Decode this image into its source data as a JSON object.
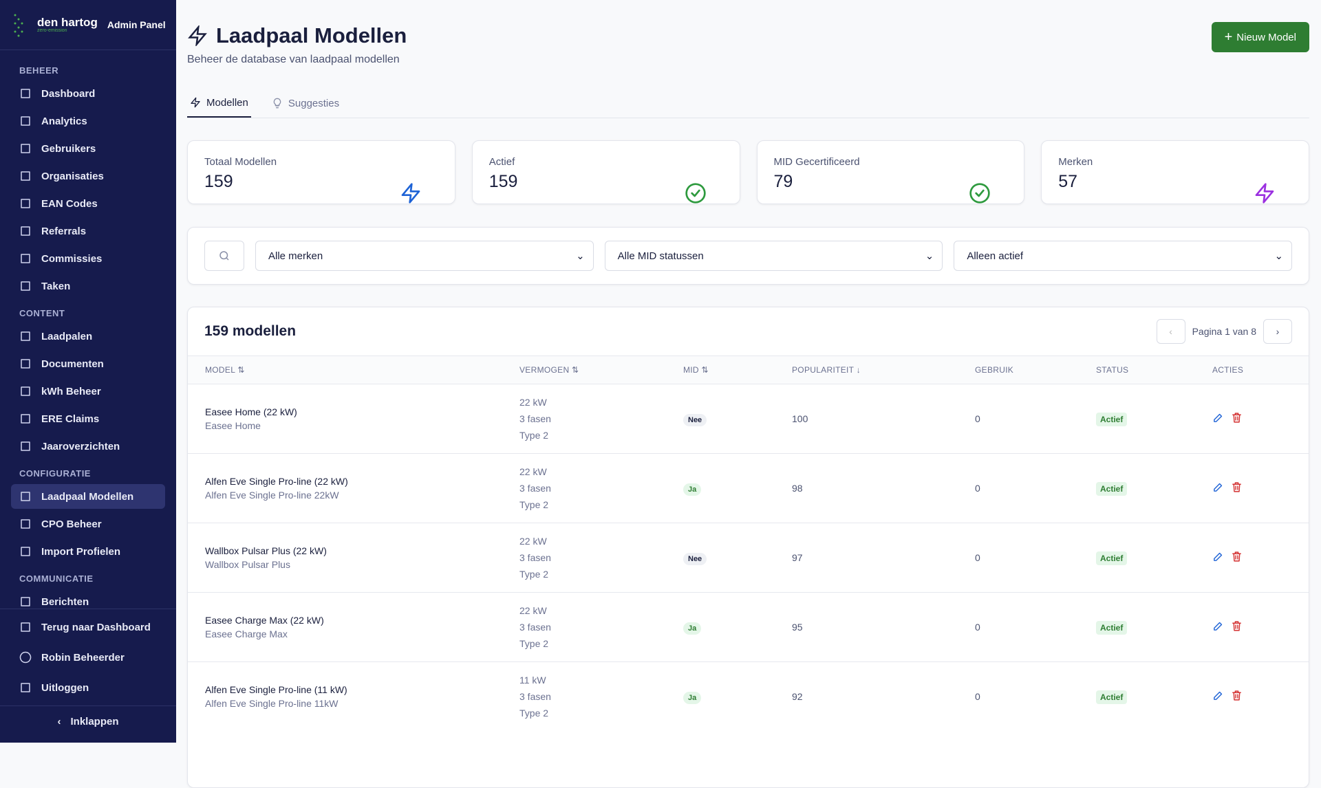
{
  "sidebar": {
    "brand": "den hartog",
    "tagline": "zero-emission",
    "panel": "Admin Panel",
    "sections": [
      {
        "title": "BEHEER",
        "items": [
          "Dashboard",
          "Analytics",
          "Gebruikers",
          "Organisaties",
          "EAN Codes",
          "Referrals",
          "Commissies",
          "Taken"
        ]
      },
      {
        "title": "CONTENT",
        "items": [
          "Laadpalen",
          "Documenten",
          "kWh Beheer",
          "ERE Claims",
          "Jaaroverzichten"
        ]
      },
      {
        "title": "CONFIGURATIE",
        "items": [
          "Laadpaal Modellen",
          "CPO Beheer",
          "Import Profielen"
        ]
      },
      {
        "title": "COMMUNICATIE",
        "items": [
          "Berichten"
        ]
      }
    ],
    "footer": [
      "Terug naar Dashboard",
      "Robin Beheerder",
      "Uitloggen"
    ],
    "collapse": "Inklappen"
  },
  "header": {
    "title": "Laadpaal Modellen",
    "subtitle": "Beheer de database van laadpaal modellen",
    "button": "Nieuw Model"
  },
  "tabs": [
    "Modellen",
    "Suggesties"
  ],
  "stats": [
    {
      "label": "Totaal Modellen",
      "value": 159
    },
    {
      "label": "Actief",
      "value": 159
    },
    {
      "label": "MID Gecertificeerd",
      "value": 79
    },
    {
      "label": "Merken",
      "value": 57
    }
  ],
  "filters": [
    "Alle merken",
    "Alle MID statussen",
    "Alleen actief"
  ],
  "table": {
    "title": "159 modellen",
    "pagination": "Pagina 1 van 8",
    "columns": [
      "MODEL",
      "VERMOGEN",
      "MID",
      "POPULARITEIT",
      "GEBRUIK",
      "STATUS",
      "ACTIES"
    ],
    "rows": [
      {
        "model": "Easee Home (22 kW)",
        "sub": "Easee Home",
        "power": "22 kW",
        "phases": "3 fasen",
        "connector": "Type 2",
        "mid": "Nee",
        "popularity": 100,
        "usage": 0,
        "status": "Actief"
      },
      {
        "model": "Alfen Eve Single Pro-line (22 kW)",
        "sub": "Alfen Eve Single Pro-line 22kW",
        "power": "22 kW",
        "phases": "3 fasen",
        "connector": "Type 2",
        "mid": "Ja",
        "popularity": 98,
        "usage": 0,
        "status": "Actief"
      },
      {
        "model": "Wallbox Pulsar Plus (22 kW)",
        "sub": "Wallbox Pulsar Plus",
        "power": "22 kW",
        "phases": "3 fasen",
        "connector": "Type 2",
        "mid": "Nee",
        "popularity": 97,
        "usage": 0,
        "status": "Actief"
      },
      {
        "model": "Easee Charge Max (22 kW)",
        "sub": "Easee Charge Max",
        "power": "22 kW",
        "phases": "3 fasen",
        "connector": "Type 2",
        "mid": "Ja",
        "popularity": 95,
        "usage": 0,
        "status": "Actief"
      },
      {
        "model": "Alfen Eve Single Pro-line (11 kW)",
        "sub": "Alfen Eve Single Pro-line 11kW",
        "power": "11 kW",
        "phases": "3 fasen",
        "connector": "Type 2",
        "mid": "Ja",
        "popularity": 92,
        "usage": 0,
        "status": "Actief"
      }
    ]
  }
}
